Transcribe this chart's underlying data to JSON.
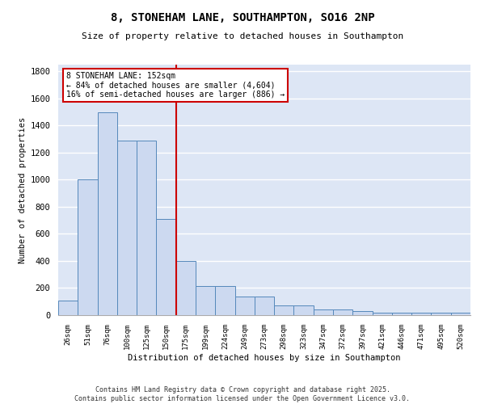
{
  "title": "8, STONEHAM LANE, SOUTHAMPTON, SO16 2NP",
  "subtitle": "Size of property relative to detached houses in Southampton",
  "xlabel": "Distribution of detached houses by size in Southampton",
  "ylabel": "Number of detached properties",
  "categories": [
    "26sqm",
    "51sqm",
    "76sqm",
    "100sqm",
    "125sqm",
    "150sqm",
    "175sqm",
    "199sqm",
    "224sqm",
    "249sqm",
    "273sqm",
    "298sqm",
    "323sqm",
    "347sqm",
    "372sqm",
    "397sqm",
    "421sqm",
    "446sqm",
    "471sqm",
    "495sqm",
    "520sqm"
  ],
  "values": [
    110,
    1000,
    1500,
    1290,
    1290,
    710,
    400,
    215,
    215,
    135,
    135,
    70,
    70,
    40,
    40,
    28,
    15,
    15,
    15,
    15,
    15
  ],
  "bar_color": "#ccd9f0",
  "bar_edge_color": "#5588bb",
  "vline_x": 5.5,
  "vline_color": "#cc0000",
  "annotation_text": "8 STONEHAM LANE: 152sqm\n← 84% of detached houses are smaller (4,604)\n16% of semi-detached houses are larger (886) →",
  "annotation_box_color": "#ffffff",
  "annotation_box_edge_color": "#cc0000",
  "bg_color": "#dde6f5",
  "grid_color": "#ffffff",
  "footer": "Contains HM Land Registry data © Crown copyright and database right 2025.\nContains public sector information licensed under the Open Government Licence v3.0.",
  "ylim": [
    0,
    1850
  ],
  "yticks": [
    0,
    200,
    400,
    600,
    800,
    1000,
    1200,
    1400,
    1600,
    1800
  ]
}
